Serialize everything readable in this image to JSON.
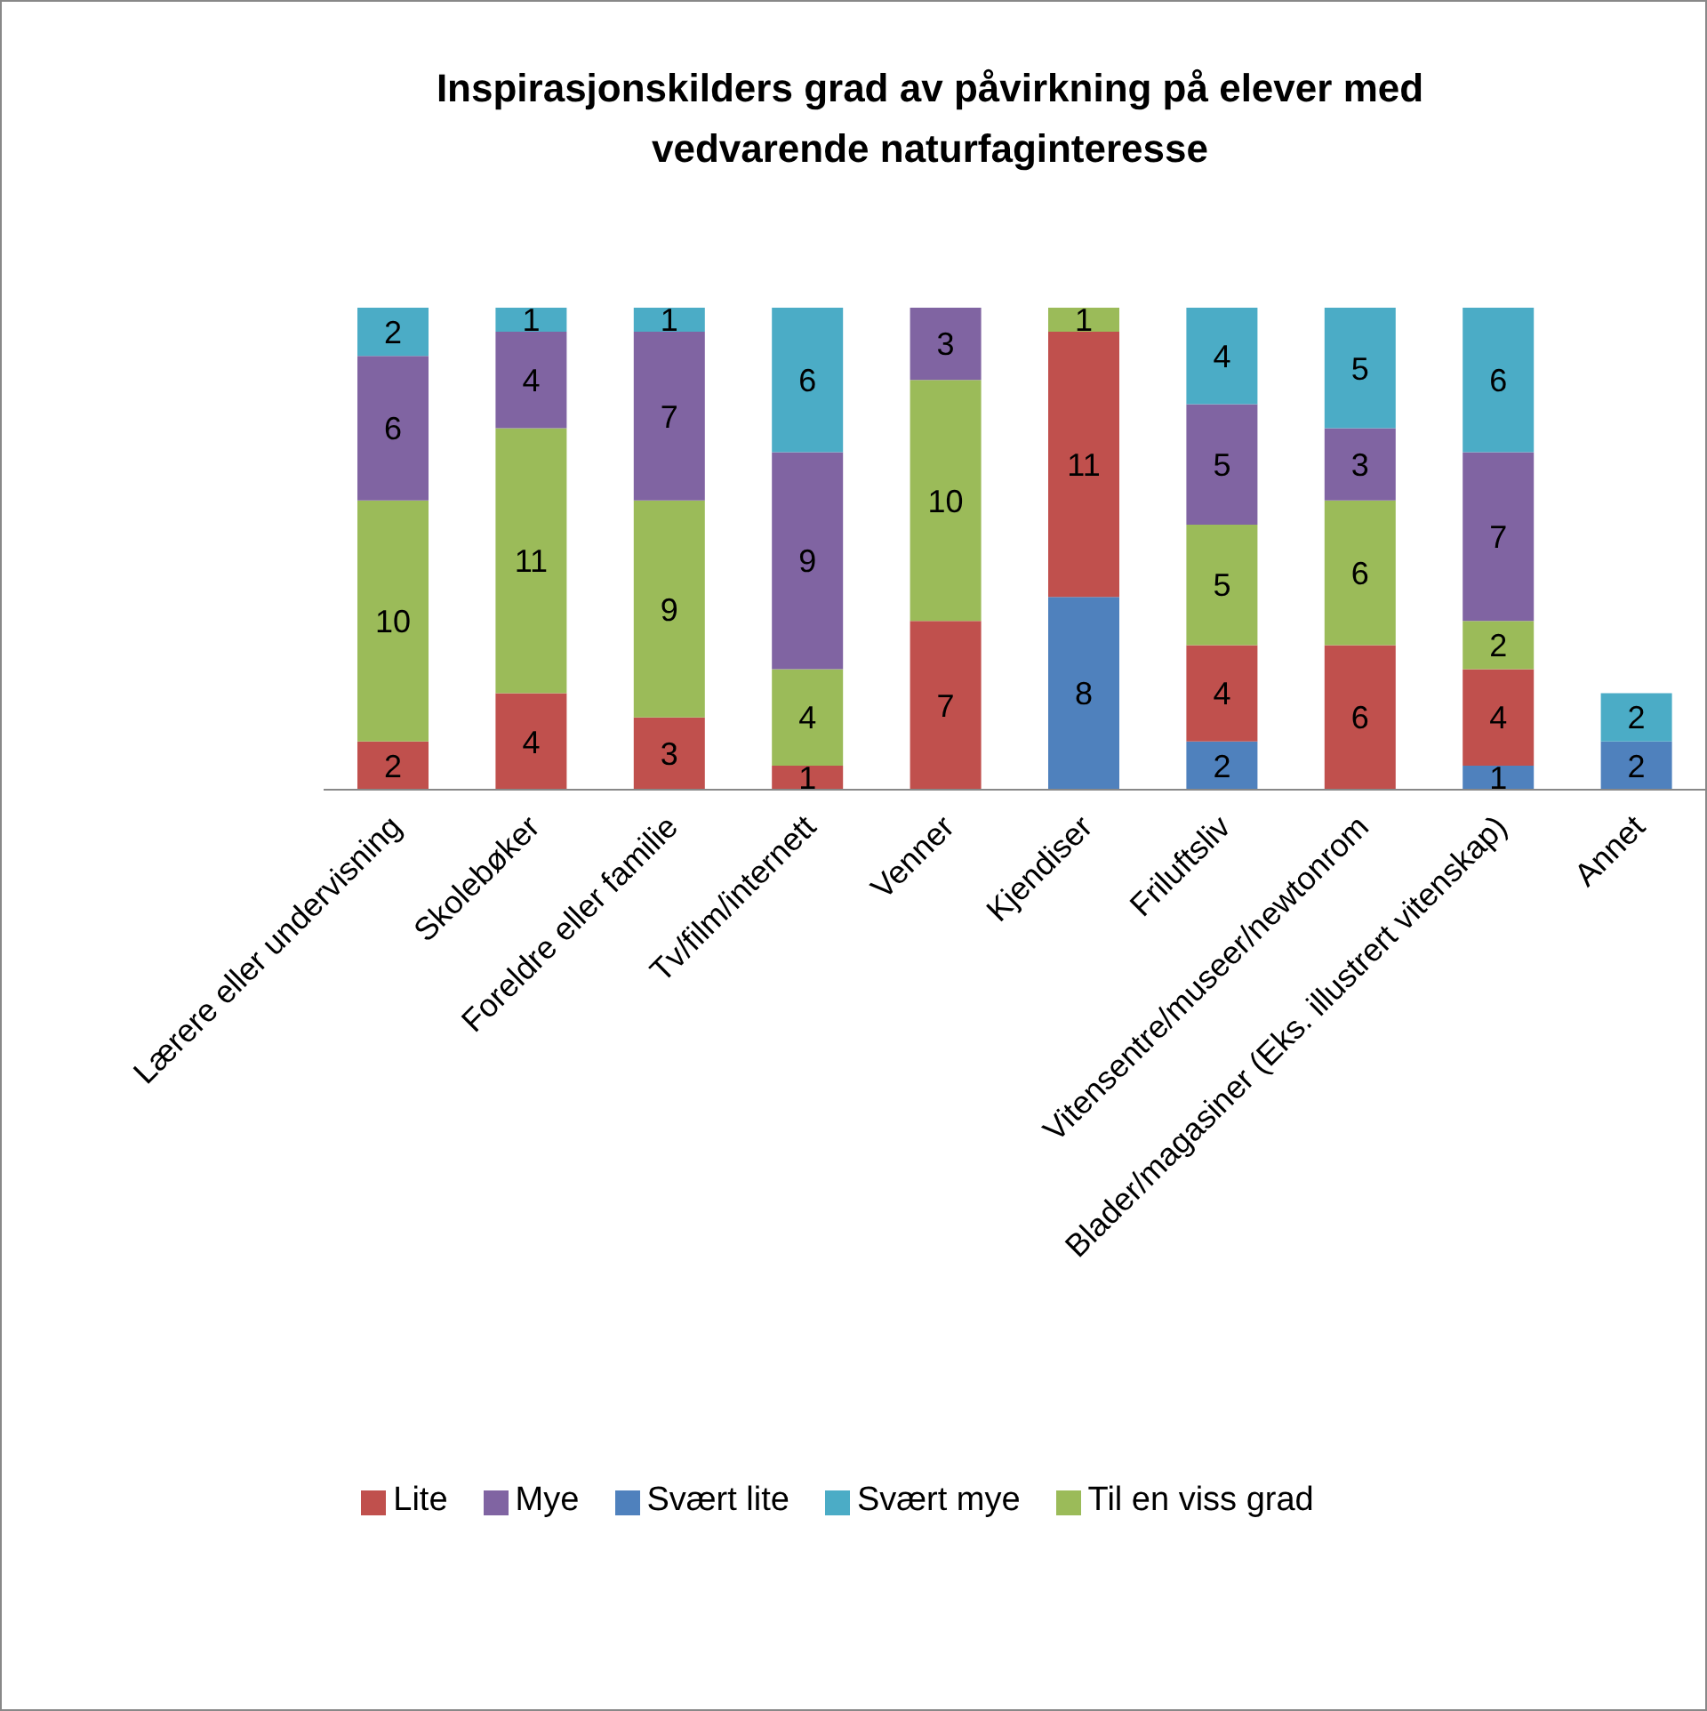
{
  "chart_data": {
    "type": "bar",
    "title": "Inspirasjonskilders grad av påvirkning på elever med vedvarende naturfaginteresse",
    "categories": [
      "Lærere eller undervisning",
      "Skolebøker",
      "Foreldre eller familie",
      "Tv/film/internett",
      "Venner",
      "Kjendiser",
      "Friluftsliv",
      "Vitensentre/museer/newtonrom",
      "Blader/magasiner (Eks. illustrert vitenskap)",
      "Annet"
    ],
    "stacked": true,
    "data_labels": true,
    "legend": "bottom",
    "grid": false,
    "series": [
      {
        "name": "Svært lite",
        "color": "#4f81bd",
        "values": [
          null,
          null,
          null,
          null,
          null,
          8,
          2,
          null,
          1,
          2
        ]
      },
      {
        "name": "Lite",
        "color": "#c0504d",
        "values": [
          2,
          4,
          3,
          1,
          7,
          11,
          4,
          6,
          4,
          null
        ]
      },
      {
        "name": "Til en viss grad",
        "color": "#9bbb59",
        "values": [
          10,
          11,
          9,
          4,
          10,
          1,
          5,
          6,
          2,
          null
        ]
      },
      {
        "name": "Mye",
        "color": "#8064a2",
        "values": [
          6,
          4,
          7,
          9,
          3,
          null,
          5,
          3,
          7,
          null
        ]
      },
      {
        "name": "Svært mye",
        "color": "#4bacc6",
        "values": [
          2,
          1,
          1,
          6,
          null,
          null,
          4,
          5,
          6,
          2
        ]
      }
    ]
  }
}
